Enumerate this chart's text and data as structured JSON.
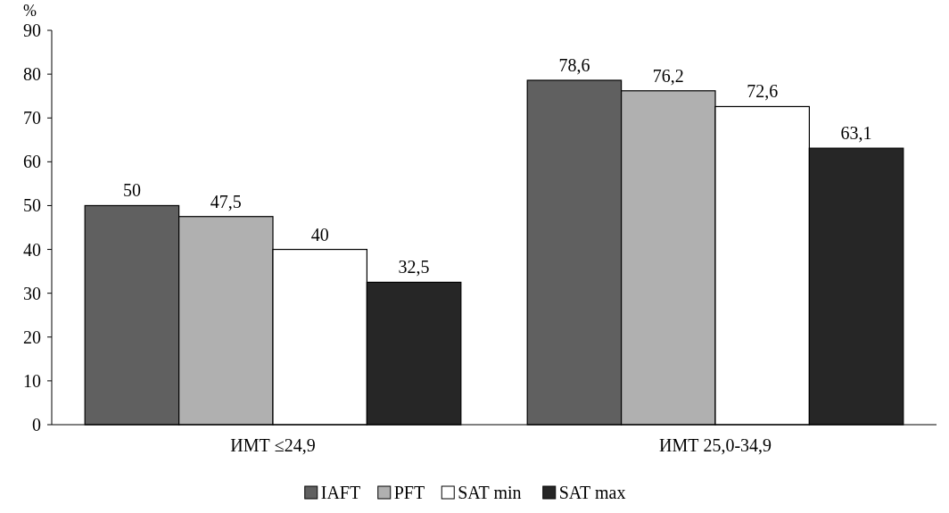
{
  "chart_data": {
    "type": "bar",
    "ylabel": "%",
    "categories": [
      "ИМТ ≤24,9",
      "ИМТ 25,0-34,9"
    ],
    "series": [
      {
        "name": "IAFT",
        "color": "#606060",
        "values": [
          50,
          78.6
        ],
        "value_labels": [
          "50",
          "78,6"
        ]
      },
      {
        "name": "PFT",
        "color": "#b0b0b0",
        "values": [
          47.5,
          76.2
        ],
        "value_labels": [
          "47,5",
          "76,2"
        ]
      },
      {
        "name": "SAT min",
        "color": "#ffffff",
        "values": [
          40,
          72.6
        ],
        "value_labels": [
          "40",
          "72,6"
        ]
      },
      {
        "name": "SAT max",
        "color": "#262626",
        "values": [
          32.5,
          63.1
        ],
        "value_labels": [
          "32,5",
          "63,1"
        ]
      }
    ],
    "ylim": [
      0,
      90
    ],
    "yticks": [
      0,
      10,
      20,
      30,
      40,
      50,
      60,
      70,
      80,
      90
    ],
    "grid": false,
    "legend": "bottom"
  }
}
